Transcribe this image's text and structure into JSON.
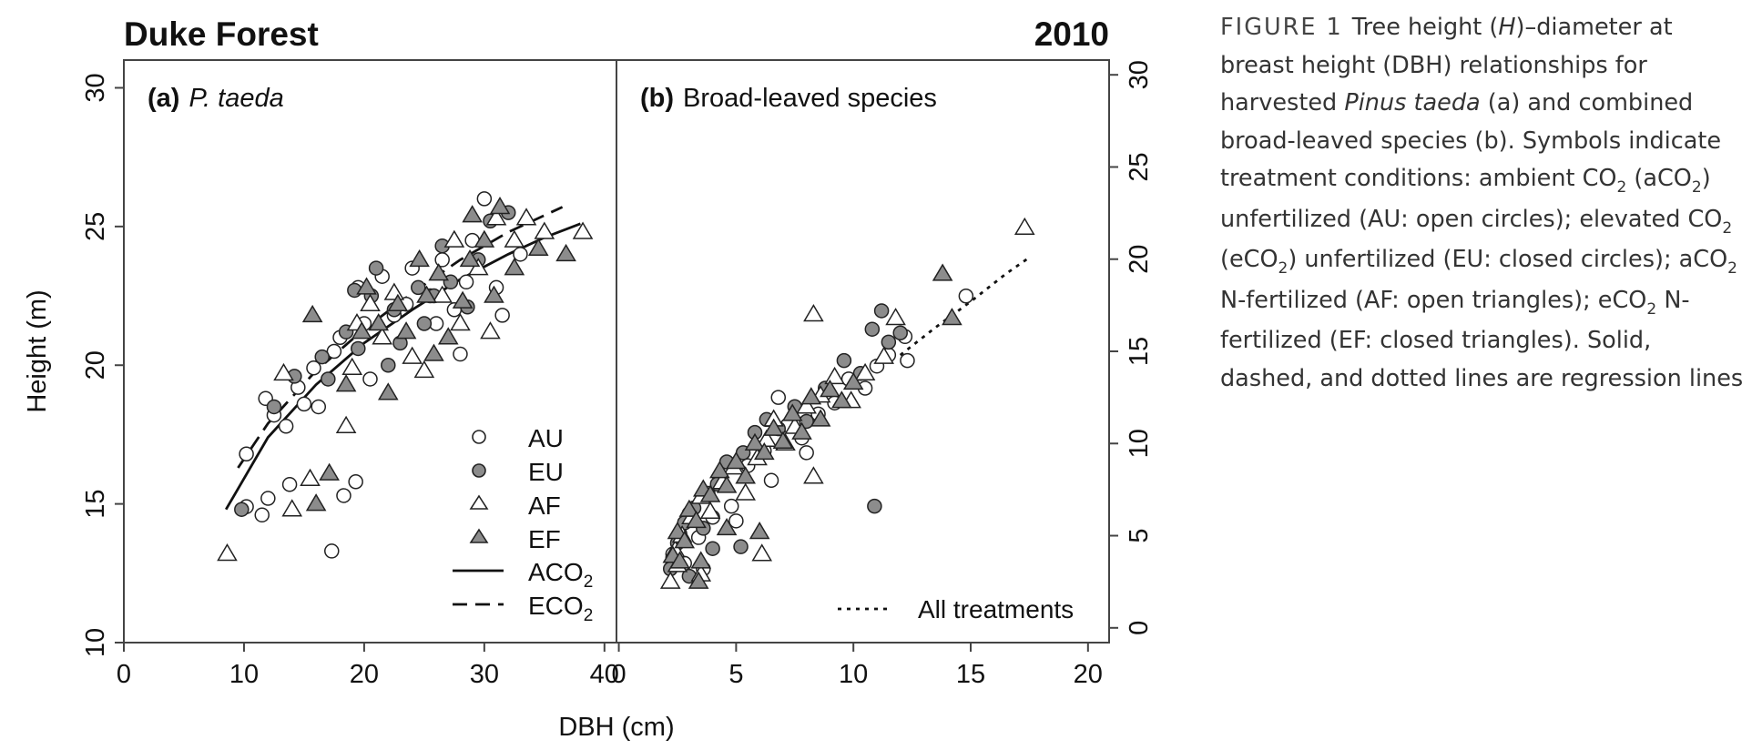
{
  "header": {
    "title": "Duke Forest",
    "year": "2010"
  },
  "axes": {
    "left_ylabel": "Height (m)",
    "xlabel": "DBH (cm)",
    "left_yticks": [
      "10",
      "15",
      "20",
      "25",
      "30"
    ],
    "right_yticks": [
      "0",
      "5",
      "10",
      "15",
      "20",
      "25",
      "30"
    ],
    "a_xticks": [
      "0",
      "10",
      "20",
      "30",
      "40"
    ],
    "b_xticks": [
      "0",
      "5",
      "10",
      "15",
      "20"
    ]
  },
  "panels": {
    "a": {
      "tag": "(a)",
      "species": "P. taeda"
    },
    "b": {
      "tag": "(b)",
      "species": "Broad-leaved species"
    }
  },
  "legend": {
    "au": "AU",
    "eu": "EU",
    "af": "AF",
    "ef": "EF",
    "aco2_main": "ACO",
    "aco2_sub": "2",
    "eco2_main": "ECO",
    "eco2_sub": "2",
    "all": "All treatments"
  },
  "caption": {
    "label": "FIGURE 1",
    "t1": "Tree height (",
    "t1_italic": "H",
    "t2": ")–diameter at breast height (DBH) relationships for harvested ",
    "t2_italic": "Pinus taeda",
    "t3": " (a) and combined broad-leaved species (b). Symbols indicate treatment conditions: ambient CO",
    "s1": "2",
    "t4": " (aCO",
    "s2": "2",
    "t5": ") unfertilized (AU: open circles); elevated CO",
    "s3": "2",
    "t6": " (eCO",
    "s4": "2",
    "t7": ") unfertilized (EU: closed circles); aCO",
    "s5": "2",
    "t8": " N-fertilized (AF: open triangles); eCO",
    "s6": "2",
    "t9": " N-fertilized (EF: closed triangles). Solid, dashed, and dotted lines are regression lines"
  },
  "colors": {
    "closed_fill": "#8c8c8c",
    "open_fill": "#ffffff",
    "stroke": "#222222"
  },
  "chart_data": [
    {
      "type": "scatter",
      "panel": "a",
      "title": "P. taeda",
      "xlabel": "DBH (cm)",
      "ylabel": "Height (m)",
      "xlim": [
        0,
        41
      ],
      "ylim": [
        10,
        31
      ],
      "grid": false,
      "legend_position": "bottom-right",
      "series": [
        {
          "name": "AU",
          "marker": "open-circle",
          "points": [
            [
              10.2,
              16.8
            ],
            [
              11.8,
              18.8
            ],
            [
              12.5,
              18.2
            ],
            [
              13.5,
              17.8
            ],
            [
              14.5,
              19.2
            ],
            [
              15.0,
              18.6
            ],
            [
              15.8,
              19.9
            ],
            [
              16.2,
              18.5
            ],
            [
              17.5,
              20.5
            ],
            [
              18.0,
              21.0
            ],
            [
              19.5,
              22.8
            ],
            [
              20.0,
              21.5
            ],
            [
              21.5,
              23.2
            ],
            [
              22.5,
              21.8
            ],
            [
              24.0,
              23.5
            ],
            [
              25.5,
              22.5
            ],
            [
              26.5,
              23.8
            ],
            [
              27.5,
              22.0
            ],
            [
              28.0,
              20.4
            ],
            [
              29.0,
              24.5
            ],
            [
              30.0,
              26.0
            ],
            [
              31.0,
              22.8
            ],
            [
              31.5,
              21.8
            ],
            [
              33.0,
              24.0
            ],
            [
              12.0,
              15.2
            ],
            [
              13.8,
              15.7
            ],
            [
              17.3,
              13.3
            ],
            [
              18.3,
              15.3
            ],
            [
              19.3,
              15.8
            ],
            [
              11.5,
              14.6
            ],
            [
              10.2,
              14.9
            ],
            [
              20.5,
              19.5
            ],
            [
              23.5,
              22.2
            ],
            [
              26.0,
              21.5
            ],
            [
              28.5,
              23.0
            ]
          ]
        },
        {
          "name": "EU",
          "marker": "closed-circle",
          "points": [
            [
              9.8,
              14.8
            ],
            [
              12.5,
              18.5
            ],
            [
              14.2,
              19.6
            ],
            [
              16.5,
              20.3
            ],
            [
              18.5,
              21.2
            ],
            [
              19.2,
              22.7
            ],
            [
              20.6,
              22.5
            ],
            [
              21.0,
              23.5
            ],
            [
              22.0,
              20.0
            ],
            [
              23.0,
              20.8
            ],
            [
              24.5,
              22.8
            ],
            [
              25.0,
              21.5
            ],
            [
              26.5,
              24.3
            ],
            [
              27.2,
              23.0
            ],
            [
              28.6,
              22.1
            ],
            [
              29.5,
              23.8
            ],
            [
              30.5,
              25.2
            ],
            [
              32.0,
              25.5
            ],
            [
              19.5,
              20.6
            ],
            [
              17.0,
              19.5
            ],
            [
              22.5,
              22.0
            ],
            [
              25.8,
              22.5
            ]
          ]
        },
        {
          "name": "AF",
          "marker": "open-triangle",
          "points": [
            [
              8.6,
              13.2
            ],
            [
              13.3,
              19.7
            ],
            [
              14.0,
              14.8
            ],
            [
              15.5,
              15.9
            ],
            [
              18.5,
              17.8
            ],
            [
              19.0,
              19.9
            ],
            [
              19.4,
              21.5
            ],
            [
              20.5,
              22.2
            ],
            [
              22.5,
              22.6
            ],
            [
              24.0,
              20.3
            ],
            [
              25.0,
              19.8
            ],
            [
              26.5,
              22.5
            ],
            [
              28.0,
              21.5
            ],
            [
              29.5,
              23.5
            ],
            [
              31.0,
              25.3
            ],
            [
              32.5,
              24.5
            ],
            [
              33.5,
              25.3
            ],
            [
              35.0,
              24.8
            ],
            [
              38.2,
              24.8
            ],
            [
              21.5,
              21.0
            ],
            [
              27.5,
              24.5
            ],
            [
              30.5,
              21.2
            ]
          ]
        },
        {
          "name": "EF",
          "marker": "closed-triangle",
          "points": [
            [
              15.7,
              21.8
            ],
            [
              16.0,
              15.0
            ],
            [
              17.1,
              16.1
            ],
            [
              18.5,
              19.3
            ],
            [
              19.8,
              21.2
            ],
            [
              20.2,
              22.8
            ],
            [
              21.2,
              21.5
            ],
            [
              22.0,
              19.0
            ],
            [
              23.5,
              21.2
            ],
            [
              24.6,
              23.8
            ],
            [
              25.2,
              22.5
            ],
            [
              26.2,
              23.3
            ],
            [
              27.0,
              21.0
            ],
            [
              28.2,
              22.3
            ],
            [
              29.0,
              25.4
            ],
            [
              30.0,
              24.5
            ],
            [
              31.3,
              25.7
            ],
            [
              32.5,
              23.5
            ],
            [
              34.5,
              24.2
            ],
            [
              36.8,
              24.0
            ],
            [
              22.8,
              22.2
            ],
            [
              25.8,
              20.4
            ],
            [
              28.8,
              23.8
            ],
            [
              30.8,
              22.5
            ]
          ]
        }
      ],
      "regression_lines": [
        {
          "name": "ACO2",
          "style": "solid",
          "points": [
            [
              8.5,
              14.8
            ],
            [
              12,
              17.4
            ],
            [
              16,
              19.3
            ],
            [
              20,
              20.8
            ],
            [
              24,
              22.0
            ],
            [
              28,
              23.1
            ],
            [
              32,
              24.0
            ],
            [
              35,
              24.6
            ],
            [
              38,
              25.1
            ]
          ]
        },
        {
          "name": "ECO2",
          "style": "dashed",
          "points": [
            [
              9.5,
              16.3
            ],
            [
              12,
              17.9
            ],
            [
              16,
              19.8
            ],
            [
              20,
              21.3
            ],
            [
              24,
              22.6
            ],
            [
              28,
              23.8
            ],
            [
              32,
              24.8
            ],
            [
              36.5,
              25.7
            ]
          ]
        }
      ]
    },
    {
      "type": "scatter",
      "panel": "b",
      "title": "Broad-leaved species",
      "xlabel": "DBH (cm)",
      "ylabel": "",
      "xlim": [
        -0.1,
        20.9
      ],
      "ylim": [
        -0.8,
        30.8
      ],
      "grid": false,
      "legend_position": "bottom-right",
      "series": [
        {
          "name": "AU",
          "marker": "open-circle",
          "points": [
            [
              2.3,
              4.0
            ],
            [
              2.6,
              5.1
            ],
            [
              3.0,
              6.2
            ],
            [
              3.4,
              4.9
            ],
            [
              3.8,
              7.3
            ],
            [
              4.3,
              8.1
            ],
            [
              4.8,
              6.6
            ],
            [
              5.5,
              8.8
            ],
            [
              6.2,
              9.6
            ],
            [
              6.8,
              12.5
            ],
            [
              7.2,
              11.0
            ],
            [
              7.8,
              10.3
            ],
            [
              8.5,
              11.6
            ],
            [
              9.2,
              12.2
            ],
            [
              9.8,
              13.5
            ],
            [
              10.5,
              13.0
            ],
            [
              11.0,
              14.2
            ],
            [
              11.5,
              14.8
            ],
            [
              12.2,
              15.8
            ],
            [
              12.3,
              14.5
            ],
            [
              14.8,
              18.0
            ],
            [
              3.6,
              3.2
            ],
            [
              5.0,
              5.8
            ],
            [
              6.5,
              8.0
            ],
            [
              8.0,
              9.5
            ],
            [
              4.0,
              6.0
            ],
            [
              2.8,
              3.5
            ]
          ]
        },
        {
          "name": "EU",
          "marker": "closed-circle",
          "points": [
            [
              2.2,
              3.2
            ],
            [
              2.5,
              4.6
            ],
            [
              2.8,
              5.7
            ],
            [
              3.2,
              6.5
            ],
            [
              3.6,
              5.4
            ],
            [
              4.2,
              7.8
            ],
            [
              4.6,
              9.0
            ],
            [
              5.3,
              9.5
            ],
            [
              5.8,
              10.6
            ],
            [
              6.3,
              11.3
            ],
            [
              6.8,
              10.8
            ],
            [
              7.5,
              12.0
            ],
            [
              8.0,
              11.2
            ],
            [
              8.8,
              13.0
            ],
            [
              9.6,
              14.5
            ],
            [
              10.3,
              13.8
            ],
            [
              10.8,
              16.2
            ],
            [
              11.2,
              17.2
            ],
            [
              11.5,
              15.5
            ],
            [
              12.0,
              16.0
            ],
            [
              10.9,
              6.6
            ],
            [
              3.0,
              2.8
            ],
            [
              4.0,
              4.3
            ],
            [
              5.2,
              4.4
            ]
          ]
        },
        {
          "name": "AF",
          "marker": "open-triangle",
          "points": [
            [
              2.2,
              2.5
            ],
            [
              2.4,
              4.2
            ],
            [
              2.7,
              5.0
            ],
            [
              3.1,
              6.0
            ],
            [
              3.5,
              7.1
            ],
            [
              3.9,
              6.3
            ],
            [
              4.4,
              7.9
            ],
            [
              4.9,
              8.7
            ],
            [
              5.4,
              7.3
            ],
            [
              5.9,
              9.2
            ],
            [
              6.3,
              10.2
            ],
            [
              6.1,
              4.0
            ],
            [
              6.6,
              11.3
            ],
            [
              7.1,
              10.0
            ],
            [
              7.5,
              10.9
            ],
            [
              8.0,
              12.0
            ],
            [
              8.3,
              17.0
            ],
            [
              8.6,
              12.6
            ],
            [
              9.2,
              13.6
            ],
            [
              9.9,
              12.3
            ],
            [
              10.5,
              13.8
            ],
            [
              11.3,
              14.7
            ],
            [
              11.8,
              16.8
            ],
            [
              17.3,
              21.7
            ],
            [
              8.3,
              8.2
            ],
            [
              3.5,
              2.9
            ],
            [
              2.5,
              3.4
            ]
          ]
        },
        {
          "name": "EF",
          "marker": "closed-triangle",
          "points": [
            [
              2.3,
              3.9
            ],
            [
              2.5,
              5.2
            ],
            [
              2.8,
              4.7
            ],
            [
              3.0,
              6.4
            ],
            [
              3.3,
              5.8
            ],
            [
              3.6,
              7.5
            ],
            [
              3.9,
              7.2
            ],
            [
              4.3,
              8.5
            ],
            [
              4.6,
              7.7
            ],
            [
              5.0,
              9.0
            ],
            [
              5.4,
              8.2
            ],
            [
              5.8,
              10.0
            ],
            [
              6.2,
              9.5
            ],
            [
              6.6,
              10.8
            ],
            [
              7.0,
              10.1
            ],
            [
              7.4,
              11.6
            ],
            [
              7.8,
              10.6
            ],
            [
              8.2,
              12.5
            ],
            [
              8.6,
              11.3
            ],
            [
              9.0,
              12.9
            ],
            [
              9.5,
              12.3
            ],
            [
              10.0,
              13.3
            ],
            [
              13.8,
              19.2
            ],
            [
              14.2,
              16.8
            ],
            [
              2.6,
              3.6
            ],
            [
              3.5,
              3.6
            ],
            [
              4.6,
              5.4
            ],
            [
              6.0,
              5.2
            ],
            [
              3.4,
              2.5
            ]
          ]
        }
      ],
      "regression_lines": [
        {
          "name": "All treatments",
          "style": "dotted",
          "points": [
            [
              12.0,
              14.8
            ],
            [
              13.5,
              16.3
            ],
            [
              15.0,
              17.7
            ],
            [
              16.5,
              19.2
            ],
            [
              17.4,
              20.0
            ]
          ]
        }
      ]
    }
  ]
}
